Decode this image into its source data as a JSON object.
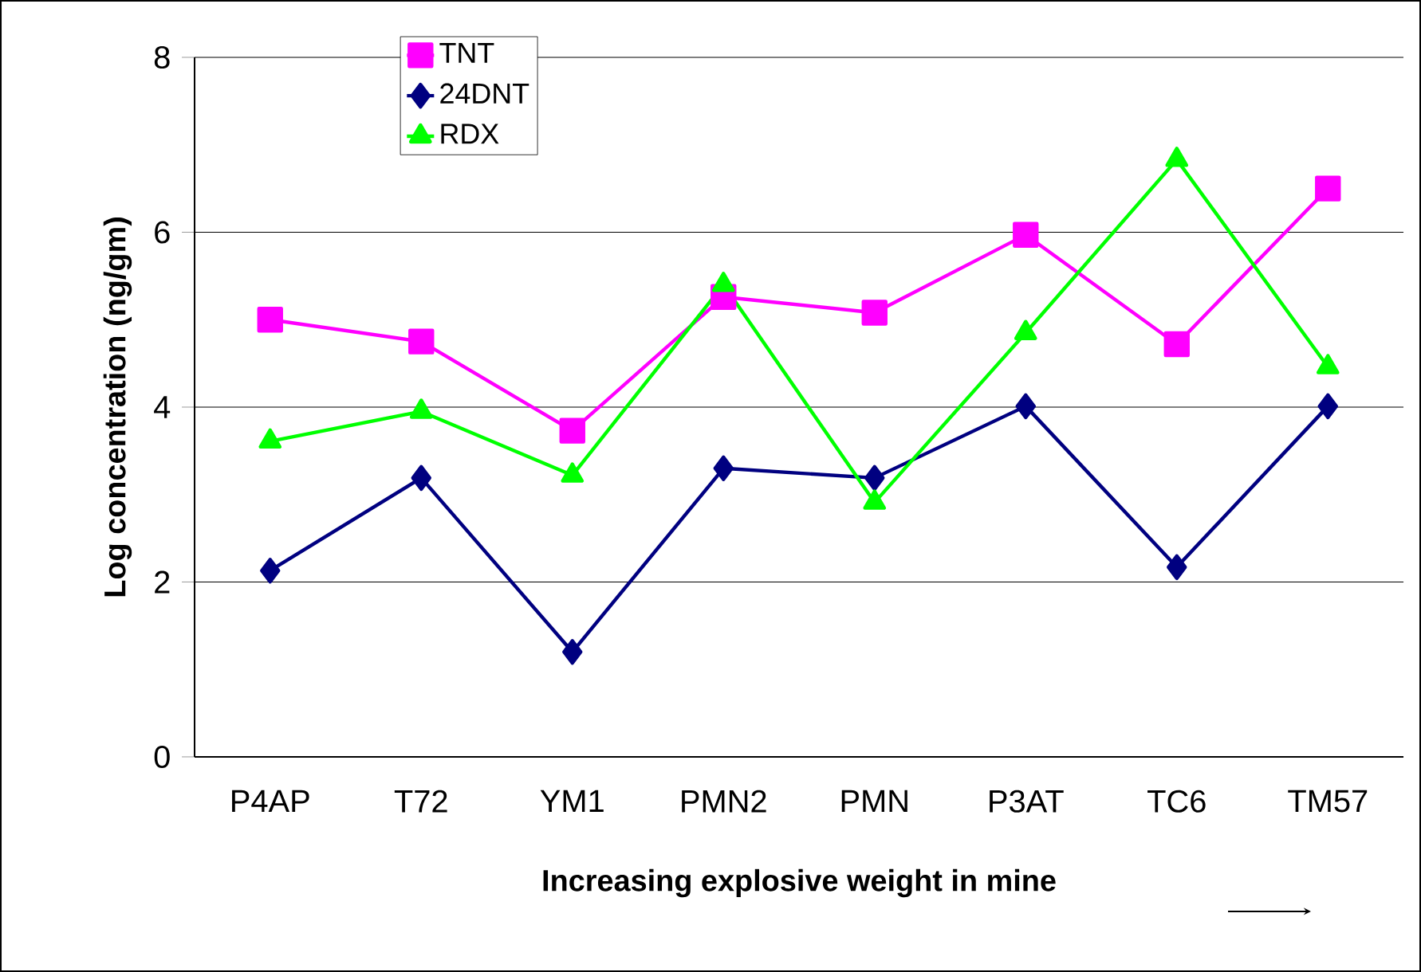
{
  "chart_data": {
    "type": "line",
    "xlabel": "Increasing explosive weight in mine",
    "ylabel": "Log concentration (ng/gm)",
    "categories": [
      "P4AP",
      "T72",
      "YM1",
      "PMN2",
      "PMN",
      "P3AT",
      "TC6",
      "TM57"
    ],
    "series": [
      {
        "name": "TNT",
        "color": "#ff00ff",
        "marker": "square",
        "values": [
          5.0,
          4.75,
          3.73,
          5.26,
          5.08,
          5.97,
          4.72,
          6.5
        ]
      },
      {
        "name": "24DNT",
        "color": "#000080",
        "marker": "diamond",
        "values": [
          2.13,
          3.19,
          1.2,
          3.3,
          3.19,
          4.01,
          2.17,
          4.01
        ]
      },
      {
        "name": "RDX",
        "color": "#00ff00",
        "marker": "triangle",
        "values": [
          3.61,
          3.95,
          3.22,
          5.4,
          2.91,
          4.85,
          6.83,
          4.46
        ]
      }
    ],
    "ylim": [
      0,
      8
    ],
    "yticks": [
      0,
      2,
      4,
      6,
      8
    ],
    "grid": "y",
    "legend": "top left",
    "line_style": "solid"
  }
}
